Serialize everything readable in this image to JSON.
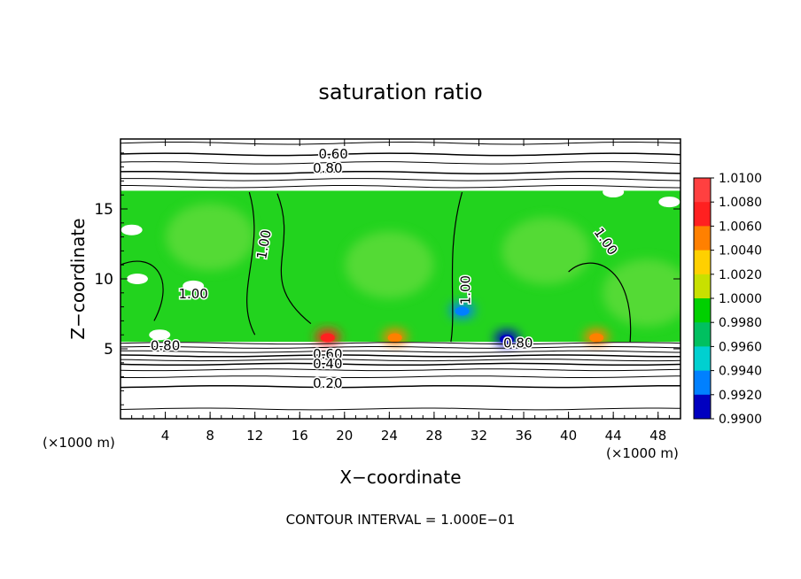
{
  "chart_data": {
    "type": "heatmap",
    "title": "saturation ratio",
    "xlabel": "X−coordinate",
    "ylabel": "Z−coordinate",
    "x_unit_label": "(×1000 m)",
    "y_unit_label": "(×1000 m)",
    "xlim": [
      0,
      50
    ],
    "ylim": [
      0,
      20
    ],
    "x_ticks": [
      "4",
      "8",
      "12",
      "16",
      "20",
      "24",
      "28",
      "32",
      "36",
      "40",
      "44",
      "48"
    ],
    "y_ticks": [
      "5",
      "10",
      "15"
    ],
    "footer": "CONTOUR INTERVAL = 1.000E−01",
    "colorbar": {
      "labels": [
        "1.0100",
        "1.0080",
        "1.0060",
        "1.0040",
        "1.0020",
        "1.0000",
        "0.9980",
        "0.9960",
        "0.9940",
        "0.9920",
        "0.9900"
      ],
      "colors": [
        "#ff4040",
        "#ff2020",
        "#ff8000",
        "#ffd000",
        "#c8e000",
        "#00d000",
        "#00c060",
        "#00d0d0",
        "#0080ff",
        "#0000c0",
        "#6000a0"
      ],
      "min": 0.99,
      "max": 1.01
    },
    "contour_labels": [
      "0.60",
      "0.80",
      "1.00",
      "1.00",
      "1.00",
      "1.00",
      "0.80",
      "0.60",
      "0.40",
      "0.20",
      "0.80"
    ],
    "cloud_base_z": 5.5,
    "cloud_top_z": 16.3,
    "hotspots": [
      {
        "x": 18.5,
        "z": 5.6,
        "value": 1.008
      },
      {
        "x": 24.5,
        "z": 5.6,
        "value": 1.006
      },
      {
        "x": 42.5,
        "z": 5.6,
        "value": 1.007
      },
      {
        "x": 34.5,
        "z": 5.5,
        "value": 0.993
      },
      {
        "x": 30.5,
        "z": 7.5,
        "value": 0.994
      }
    ]
  }
}
